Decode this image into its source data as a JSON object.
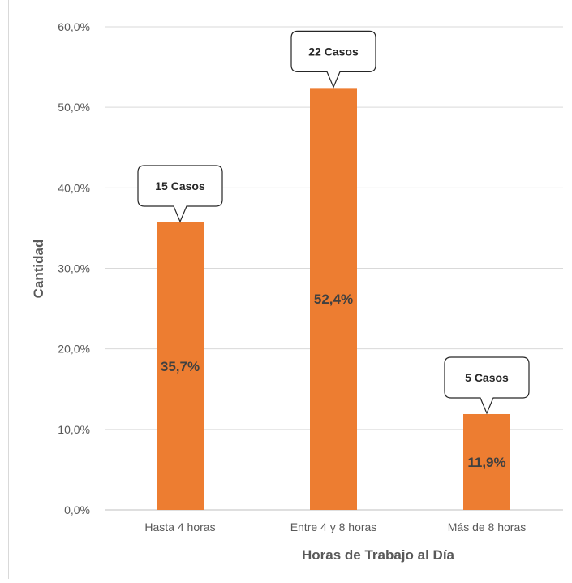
{
  "chart_data": {
    "type": "bar",
    "title": "",
    "xlabel": "Horas de Trabajo al Día",
    "ylabel": "Cantidad",
    "categories": [
      "Hasta 4 horas",
      "Entre 4 y 8 horas",
      "Más de 8 horas"
    ],
    "values": [
      35.7,
      52.4,
      11.9
    ],
    "data_labels": [
      "35,7%",
      "52,4%",
      "11,9%"
    ],
    "callouts": [
      "15 Casos",
      "22 Casos",
      "5 Casos"
    ],
    "ylim": [
      0,
      60
    ],
    "yticks": [
      0,
      10,
      20,
      30,
      40,
      50,
      60
    ],
    "ytick_labels": [
      "0,0%",
      "10,0%",
      "20,0%",
      "30,0%",
      "40,0%",
      "50,0%",
      "60,0%"
    ],
    "grid": true,
    "legend": "none",
    "bar_color": "#ED7D31",
    "label_color": "#404040",
    "axis_color": "#595959",
    "grid_color": "#d9d9d9"
  }
}
